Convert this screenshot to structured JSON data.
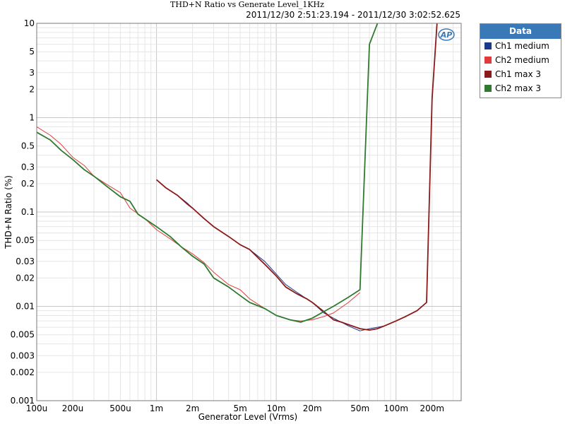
{
  "chart_data": {
    "type": "line",
    "title": "THD+N Ratio vs Generate Level_1KHz",
    "subtitle": "2011/12/30 2:51:23.194 - 2011/12/30 3:02:52.625",
    "xlabel": "Generator Level (Vrms)",
    "ylabel": "THD+N Ratio (%)",
    "x_scale": "log",
    "y_scale": "log",
    "xlim": [
      0.0001,
      0.35
    ],
    "ylim": [
      0.001,
      10
    ],
    "x_ticks": [
      {
        "value": 0.0001,
        "label": "100u"
      },
      {
        "value": 0.0002,
        "label": "200u"
      },
      {
        "value": 0.0005,
        "label": "500u"
      },
      {
        "value": 0.001,
        "label": "1m"
      },
      {
        "value": 0.002,
        "label": "2m"
      },
      {
        "value": 0.005,
        "label": "5m"
      },
      {
        "value": 0.01,
        "label": "10m"
      },
      {
        "value": 0.02,
        "label": "20m"
      },
      {
        "value": 0.05,
        "label": "50m"
      },
      {
        "value": 0.1,
        "label": "100m"
      },
      {
        "value": 0.2,
        "label": "200m"
      }
    ],
    "y_ticks": [
      {
        "value": 10,
        "label": "10"
      },
      {
        "value": 5,
        "label": "5"
      },
      {
        "value": 3,
        "label": "3"
      },
      {
        "value": 2,
        "label": "2"
      },
      {
        "value": 1,
        "label": "1"
      },
      {
        "value": 0.5,
        "label": "0.5"
      },
      {
        "value": 0.3,
        "label": "0.3"
      },
      {
        "value": 0.2,
        "label": "0.2"
      },
      {
        "value": 0.1,
        "label": "0.1"
      },
      {
        "value": 0.05,
        "label": "0.05"
      },
      {
        "value": 0.03,
        "label": "0.03"
      },
      {
        "value": 0.02,
        "label": "0.02"
      },
      {
        "value": 0.01,
        "label": "0.01"
      },
      {
        "value": 0.005,
        "label": "0.005"
      },
      {
        "value": 0.003,
        "label": "0.003"
      },
      {
        "value": 0.002,
        "label": "0.002"
      },
      {
        "value": 0.001,
        "label": "0.001"
      }
    ],
    "grid": true,
    "legend": {
      "title": "Data",
      "position": "right"
    },
    "series": [
      {
        "name": "Ch1 medium",
        "color": "#1a3a8a",
        "width": 1,
        "x": [
          0.001,
          0.0012,
          0.0015,
          0.0018,
          0.002,
          0.0025,
          0.003,
          0.004,
          0.005,
          0.006,
          0.008,
          0.01,
          0.012,
          0.015,
          0.018,
          0.02,
          0.025,
          0.03,
          0.035,
          0.04,
          0.05,
          0.06,
          0.07,
          0.08,
          0.1,
          0.12,
          0.15,
          0.18,
          0.2,
          0.22
        ],
        "y": [
          0.22,
          0.18,
          0.15,
          0.125,
          0.11,
          0.085,
          0.07,
          0.055,
          0.045,
          0.04,
          0.03,
          0.022,
          0.017,
          0.014,
          0.012,
          0.011,
          0.0085,
          0.0075,
          0.0068,
          0.0062,
          0.0055,
          0.0058,
          0.006,
          0.0062,
          0.007,
          0.0078,
          0.009,
          0.011,
          1.5,
          10
        ]
      },
      {
        "name": "Ch2 medium",
        "color": "#e03a3a",
        "width": 1,
        "x": [
          0.0001,
          0.00013,
          0.00016,
          0.0002,
          0.00025,
          0.0003,
          0.0004,
          0.0005,
          0.0006,
          0.0008,
          0.001,
          0.0013,
          0.0016,
          0.002,
          0.0025,
          0.003,
          0.004,
          0.005,
          0.006,
          0.008,
          0.01,
          0.013,
          0.016,
          0.02,
          0.025,
          0.03,
          0.04,
          0.05
        ],
        "y": [
          0.8,
          0.65,
          0.52,
          0.38,
          0.31,
          0.24,
          0.19,
          0.16,
          0.11,
          0.085,
          0.065,
          0.052,
          0.043,
          0.036,
          0.029,
          0.023,
          0.017,
          0.015,
          0.012,
          0.0095,
          0.008,
          0.0072,
          0.007,
          0.0072,
          0.0078,
          0.0085,
          0.011,
          0.014
        ]
      },
      {
        "name": "Ch1 max 3",
        "color": "#8b1a1a",
        "width": 1.8,
        "x": [
          0.001,
          0.0012,
          0.0015,
          0.0018,
          0.002,
          0.0025,
          0.003,
          0.004,
          0.005,
          0.006,
          0.008,
          0.01,
          0.012,
          0.015,
          0.018,
          0.02,
          0.025,
          0.03,
          0.035,
          0.04,
          0.05,
          0.06,
          0.07,
          0.08,
          0.1,
          0.12,
          0.15,
          0.18,
          0.2,
          0.22
        ],
        "y": [
          0.22,
          0.18,
          0.15,
          0.122,
          0.11,
          0.085,
          0.07,
          0.055,
          0.045,
          0.04,
          0.028,
          0.021,
          0.016,
          0.0135,
          0.012,
          0.011,
          0.0088,
          0.0072,
          0.0068,
          0.0064,
          0.0058,
          0.0056,
          0.0058,
          0.0062,
          0.007,
          0.0078,
          0.009,
          0.011,
          1.6,
          10
        ]
      },
      {
        "name": "Ch2 max 3",
        "color": "#2f7a2f",
        "width": 1.8,
        "x": [
          0.0001,
          0.00013,
          0.00016,
          0.0002,
          0.00025,
          0.0003,
          0.0004,
          0.0005,
          0.0006,
          0.0007,
          0.001,
          0.0013,
          0.0016,
          0.002,
          0.0025,
          0.003,
          0.004,
          0.005,
          0.006,
          0.008,
          0.01,
          0.013,
          0.016,
          0.02,
          0.025,
          0.03,
          0.04,
          0.05,
          0.06,
          0.07
        ],
        "y": [
          0.7,
          0.58,
          0.45,
          0.36,
          0.28,
          0.24,
          0.18,
          0.145,
          0.13,
          0.095,
          0.07,
          0.055,
          0.043,
          0.034,
          0.028,
          0.02,
          0.016,
          0.013,
          0.011,
          0.0095,
          0.008,
          0.0072,
          0.0068,
          0.0075,
          0.0088,
          0.01,
          0.0125,
          0.015,
          6,
          10
        ]
      }
    ]
  }
}
